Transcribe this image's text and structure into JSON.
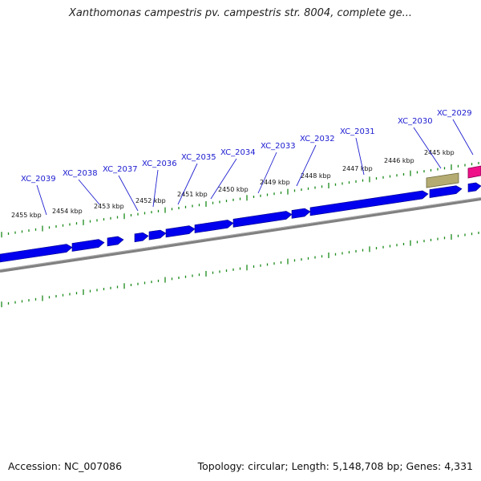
{
  "header": {
    "title": "Xanthomonas campestris pv. campestris str. 8004, complete ge..."
  },
  "footer": {
    "accession": "Accession: NC_007086",
    "stats": "Topology: circular; Length: 5,148,708 bp; Genes: 4,331"
  },
  "colors": {
    "gene": "#0000ee",
    "backbone": "#808080",
    "ruler": "#1a8a1a",
    "locus_label": "#1a1ad0",
    "feature_olive": "#b3ab72",
    "feature_pink": "#ee1188"
  },
  "ruler_labels": [
    "2455 kbp",
    "2454 kbp",
    "2453 kbp",
    "2452 kbp",
    "2451 kbp",
    "2450 kbp",
    "2449 kbp",
    "2448 kbp",
    "2447 kbp",
    "2446 kbp",
    "2445 kbp"
  ],
  "gene_labels": [
    "XC_2039",
    "XC_2038",
    "XC_2037",
    "XC_2036",
    "XC_2035",
    "XC_2034",
    "XC_2033",
    "XC_2032",
    "XC_2031",
    "XC_2030",
    "XC_2029"
  ]
}
